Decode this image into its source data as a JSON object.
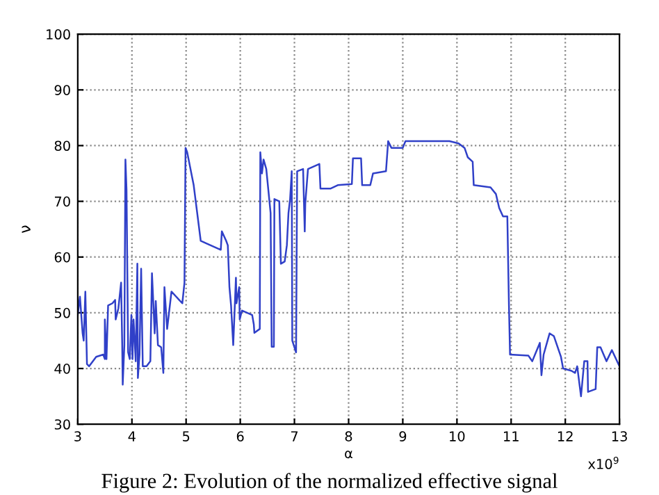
{
  "chart_data": {
    "type": "line",
    "xlabel": "α",
    "ylabel": "ν",
    "annotations": [
      "x10$^{9}$",
      "Figure 2: Evolution of the normalized effective signal"
    ],
    "xlim": [
      3,
      13
    ],
    "xticks": [
      3,
      4,
      5,
      6,
      7,
      8,
      9,
      10,
      11,
      12,
      13
    ],
    "ylim": [
      30,
      100
    ],
    "yticks": [
      30,
      40,
      50,
      60,
      70,
      80,
      90,
      100
    ],
    "grid": true,
    "line_style": "solid",
    "marker": "none",
    "series": [
      {
        "color": "#3040c8",
        "x": [
          3.0,
          3.04,
          3.09,
          3.11,
          3.14,
          3.17,
          3.21,
          3.34,
          3.47,
          3.5,
          3.5,
          3.53,
          3.56,
          3.64,
          3.69,
          3.7,
          3.75,
          3.8,
          3.82,
          3.83,
          3.86,
          3.88,
          3.9,
          3.93,
          3.96,
          3.99,
          4.01,
          4.03,
          4.07,
          4.1,
          4.11,
          4.14,
          4.17,
          4.2,
          4.27,
          4.34,
          4.37,
          4.42,
          4.44,
          4.48,
          4.54,
          4.58,
          4.6,
          4.65,
          4.68,
          4.73,
          4.93,
          4.97,
          4.99,
          5.02,
          5.14,
          5.27,
          5.36,
          5.64,
          5.66,
          5.74,
          5.77,
          5.8,
          5.83,
          5.87,
          5.92,
          5.93,
          5.98,
          5.99,
          6.03,
          6.22,
          6.25,
          6.26,
          6.36,
          6.37,
          6.4,
          6.43,
          6.48,
          6.56,
          6.58,
          6.62,
          6.63,
          6.72,
          6.75,
          6.82,
          6.86,
          6.89,
          6.92,
          6.95,
          6.96,
          7.03,
          7.05,
          7.16,
          7.19,
          7.2,
          7.25,
          7.46,
          7.48,
          7.67,
          7.8,
          8.06,
          8.08,
          8.23,
          8.25,
          8.4,
          8.45,
          8.69,
          8.73,
          8.79,
          9.0,
          9.05,
          9.86,
          10.03,
          10.14,
          10.2,
          10.29,
          10.31,
          10.62,
          10.72,
          10.78,
          10.85,
          10.93,
          10.96,
          10.98,
          11.32,
          11.39,
          11.53,
          11.56,
          11.6,
          11.71,
          11.79,
          11.92,
          11.96,
          12.11,
          12.18,
          12.22,
          12.29,
          12.35,
          12.41,
          12.42,
          12.56,
          12.59,
          12.65,
          12.76,
          12.86,
          13.0
        ],
        "values": [
          49.6,
          52.9,
          46.3,
          45.0,
          53.8,
          40.8,
          40.4,
          42.1,
          42.5,
          41.7,
          48.8,
          41.7,
          51.3,
          51.7,
          52.3,
          48.8,
          50.8,
          55.4,
          44.6,
          37.1,
          44.2,
          77.5,
          72.1,
          42.9,
          41.7,
          49.6,
          41.7,
          48.8,
          41.3,
          58.8,
          38.3,
          42.5,
          57.9,
          40.4,
          40.4,
          41.3,
          57.1,
          46.3,
          52.1,
          44.2,
          43.8,
          39.2,
          54.6,
          47.1,
          49.6,
          53.8,
          51.7,
          55.4,
          79.6,
          78.8,
          72.9,
          62.9,
          62.5,
          61.3,
          64.6,
          62.9,
          62.1,
          54.6,
          51.3,
          44.2,
          56.3,
          51.7,
          54.6,
          48.8,
          50.4,
          49.6,
          47.9,
          46.4,
          47.1,
          78.8,
          75.0,
          77.5,
          75.8,
          67.9,
          43.9,
          43.9,
          70.4,
          70.0,
          58.8,
          59.2,
          62.1,
          67.9,
          70.4,
          75.4,
          45.0,
          42.9,
          75.4,
          75.8,
          64.6,
          69.6,
          75.8,
          76.7,
          72.3,
          72.3,
          72.9,
          73.1,
          77.7,
          77.7,
          72.9,
          72.9,
          75.0,
          75.4,
          80.8,
          79.6,
          79.6,
          80.8,
          80.8,
          80.4,
          79.6,
          77.9,
          77.1,
          72.9,
          72.5,
          71.3,
          68.8,
          67.3,
          67.3,
          51.3,
          42.5,
          42.3,
          41.3,
          44.6,
          38.8,
          42.5,
          46.3,
          45.8,
          42.1,
          40.0,
          39.6,
          39.2,
          40.4,
          35.0,
          41.3,
          41.3,
          35.8,
          36.3,
          43.8,
          43.8,
          41.3,
          43.3,
          40.4
        ]
      }
    ]
  }
}
